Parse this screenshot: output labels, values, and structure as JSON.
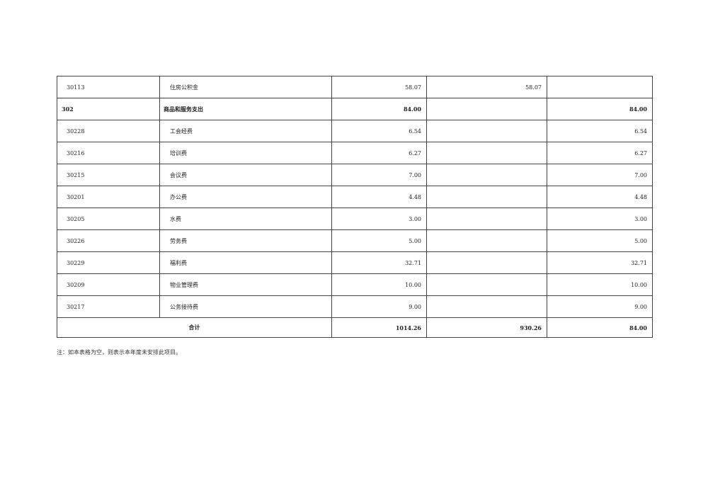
{
  "rows": [
    {
      "code": "30113",
      "name": "住房公积金",
      "total": "58.07",
      "basic": "58.07",
      "project": ""
    },
    {
      "code": "302",
      "name": "商品和服务支出",
      "total": "84.00",
      "basic": "",
      "project": "84.00",
      "bold": true
    },
    {
      "code": "30228",
      "name": "工会经费",
      "total": "6.54",
      "basic": "",
      "project": "6.54"
    },
    {
      "code": "30216",
      "name": "培训费",
      "total": "6.27",
      "basic": "",
      "project": "6.27"
    },
    {
      "code": "30215",
      "name": "会议费",
      "total": "7.00",
      "basic": "",
      "project": "7.00"
    },
    {
      "code": "30201",
      "name": "办公费",
      "total": "4.48",
      "basic": "",
      "project": "4.48"
    },
    {
      "code": "30205",
      "name": "水费",
      "total": "3.00",
      "basic": "",
      "project": "3.00"
    },
    {
      "code": "30226",
      "name": "劳务费",
      "total": "5.00",
      "basic": "",
      "project": "5.00"
    },
    {
      "code": "30229",
      "name": "福利费",
      "total": "32.71",
      "basic": "",
      "project": "32.71"
    },
    {
      "code": "30209",
      "name": "物业管理费",
      "total": "10.00",
      "basic": "",
      "project": "10.00"
    },
    {
      "code": "30217",
      "name": "公务接待费",
      "total": "9.00",
      "basic": "",
      "project": "9.00"
    }
  ],
  "total_row": {
    "label": "合计",
    "total": "1014.26",
    "basic": "930.26",
    "project": "84.00"
  },
  "note": "注：如本表格为空，则表示本年度未安排此项目。"
}
